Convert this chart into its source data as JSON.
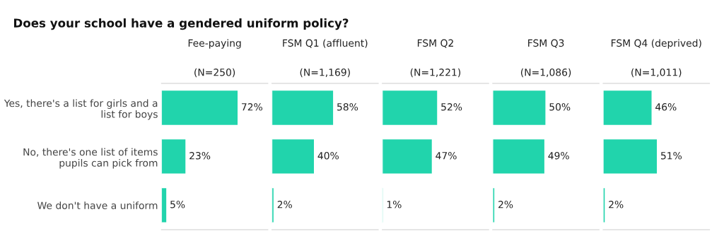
{
  "chart_data": [
    {
      "type": "bar",
      "orientation": "horizontal",
      "title": "Fee-paying",
      "subtitle": "(N=250)",
      "annotations": [
        "Does your school have a gendered uniform policy?"
      ],
      "categories": [
        "Yes, there's a list for girls and a\nlist for boys",
        "No, there's one list of items\npupils can pick from",
        "We don't have a uniform"
      ],
      "values": [
        72,
        23,
        5
      ],
      "value_labels": [
        "72%",
        "23%",
        "5%"
      ],
      "color": "#21d4ac",
      "xlim": [
        0,
        100
      ],
      "tick_labels": "y",
      "grid": false,
      "legend": false
    },
    {
      "type": "bar",
      "orientation": "horizontal",
      "title": "FSM Q1 (affluent)",
      "subtitle": "(N=1,169)",
      "values": [
        58,
        40,
        2
      ],
      "value_labels": [
        "58%",
        "40%",
        "2%"
      ],
      "color": "#21d4ac",
      "xlim": [
        0,
        100
      ],
      "tick_labels": false,
      "grid": false,
      "legend": false
    },
    {
      "type": "bar",
      "orientation": "horizontal",
      "title": "FSM Q2",
      "subtitle": "(N=1,221)",
      "values": [
        52,
        47,
        1
      ],
      "value_labels": [
        "52%",
        "47%",
        "1%"
      ],
      "color": "#21d4ac",
      "xlim": [
        0,
        100
      ],
      "tick_labels": false,
      "grid": false,
      "legend": false
    },
    {
      "type": "bar",
      "orientation": "horizontal",
      "title": "FSM Q3",
      "subtitle": "(N=1,086)",
      "values": [
        50,
        49,
        2
      ],
      "value_labels": [
        "50%",
        "49%",
        "2%"
      ],
      "color": "#21d4ac",
      "xlim": [
        0,
        100
      ],
      "tick_labels": false,
      "grid": false,
      "legend": false
    },
    {
      "type": "bar",
      "orientation": "horizontal",
      "title": "FSM Q4 (deprived)",
      "subtitle": "(N=1,011)",
      "values": [
        46,
        51,
        2
      ],
      "value_labels": [
        "46%",
        "51%",
        "2%"
      ],
      "color": "#21d4ac",
      "xlim": [
        0,
        100
      ],
      "tick_labels": false,
      "grid": false,
      "legend": false
    }
  ]
}
